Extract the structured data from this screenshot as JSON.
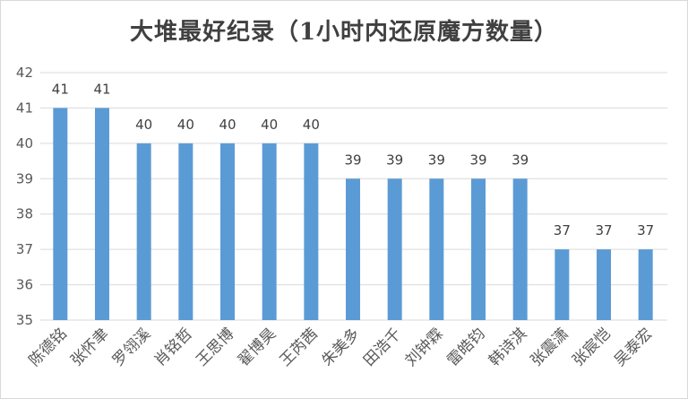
{
  "chart_data": {
    "type": "bar",
    "title": "大堆最好纪录（1小时内还原魔方数量）",
    "xlabel": "",
    "ylabel": "",
    "categories": [
      "陈德铭",
      "张怀聿",
      "罗翎溪",
      "肖铭哲",
      "王思博",
      "翟博昊",
      "王芮茜",
      "朱美多",
      "田浩千",
      "刘钟霖",
      "雷皓钧",
      "韩诗淇",
      "张震潇",
      "张宸恺",
      "吴泰宏"
    ],
    "values": [
      41,
      41,
      40,
      40,
      40,
      40,
      40,
      39,
      39,
      39,
      39,
      39,
      37,
      37,
      37
    ],
    "ylim": [
      35,
      42
    ],
    "yticks": [
      35,
      36,
      37,
      38,
      39,
      40,
      41,
      42
    ],
    "grid": true,
    "legend": "none",
    "bar_color": "#5b9bd5",
    "grid_color": "#d9d9d9",
    "text_color": "#595959"
  }
}
